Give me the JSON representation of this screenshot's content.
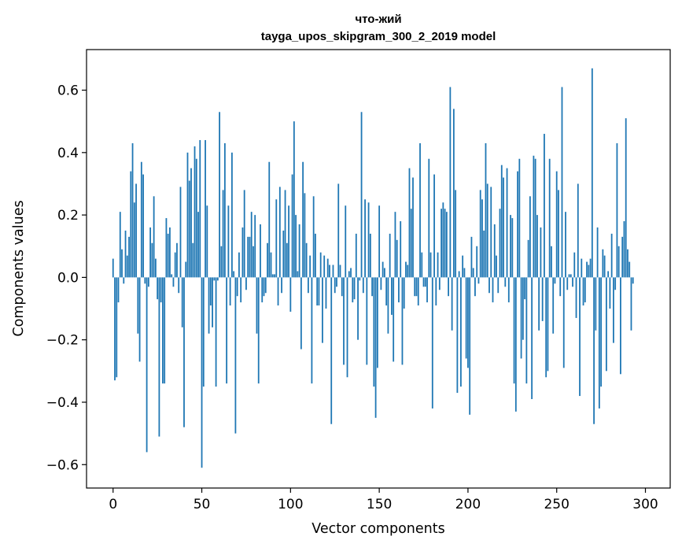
{
  "chart_data": {
    "type": "bar",
    "title_line1": "что-жий",
    "title_line2": "tayga_upos_skipgram_300_2_2019 model",
    "xlabel": "Vector components",
    "ylabel": "Components values",
    "xlim": [
      -14.96,
      313.96
    ],
    "ylim": [
      -0.675,
      0.73
    ],
    "xticks": [
      0,
      50,
      100,
      150,
      200,
      250,
      300
    ],
    "xtick_labels": [
      "0",
      "50",
      "100",
      "150",
      "200",
      "250",
      "300"
    ],
    "yticks": [
      -0.6,
      -0.4,
      -0.2,
      0.0,
      0.2,
      0.4,
      0.6
    ],
    "ytick_labels": [
      "−0.6",
      "−0.4",
      "−0.2",
      "0.0",
      "0.2",
      "0.4",
      "0.6"
    ],
    "bar_color": "#1f77b4",
    "grid": false,
    "values": [
      0.06,
      -0.33,
      -0.32,
      -0.08,
      0.21,
      0.09,
      -0.02,
      0.15,
      0.07,
      0.13,
      0.34,
      0.43,
      0.24,
      0.3,
      -0.18,
      -0.27,
      0.37,
      0.33,
      -0.02,
      -0.56,
      -0.03,
      0.16,
      0.11,
      0.26,
      0.06,
      -0.07,
      -0.51,
      -0.08,
      -0.34,
      -0.34,
      0.19,
      0.14,
      0.16,
      0.01,
      -0.03,
      0.08,
      0.11,
      -0.05,
      0.29,
      -0.16,
      -0.48,
      0.05,
      0.4,
      0.31,
      0.35,
      0.11,
      0.42,
      0.38,
      0.21,
      0.44,
      -0.61,
      -0.35,
      0.44,
      0.23,
      -0.18,
      -0.09,
      -0.16,
      -0.01,
      -0.35,
      -0.01,
      0.53,
      0.1,
      0.28,
      0.43,
      -0.34,
      0.23,
      -0.09,
      0.4,
      0.02,
      -0.5,
      -0.06,
      0.08,
      -0.08,
      0.16,
      0.28,
      -0.04,
      0.13,
      0.13,
      0.21,
      0.1,
      0.2,
      -0.18,
      -0.34,
      0.17,
      -0.08,
      -0.06,
      -0.05,
      0.11,
      0.37,
      0.08,
      0.01,
      0.01,
      0.25,
      -0.09,
      0.29,
      -0.05,
      0.15,
      0.28,
      0.11,
      0.23,
      -0.11,
      0.33,
      0.5,
      0.2,
      0.02,
      0.17,
      -0.23,
      0.37,
      0.27,
      0.11,
      -0.05,
      0.07,
      -0.34,
      0.26,
      0.14,
      -0.09,
      -0.09,
      0.08,
      -0.21,
      0.07,
      -0.1,
      0.06,
      0.04,
      -0.47,
      0.04,
      -0.05,
      -0.03,
      0.3,
      0.04,
      -0.06,
      -0.28,
      0.23,
      -0.32,
      0.02,
      0.03,
      -0.08,
      -0.07,
      0.14,
      -0.2,
      -0.01,
      0.53,
      -0.05,
      0.25,
      -0.28,
      0.24,
      0.14,
      -0.06,
      -0.35,
      -0.45,
      -0.29,
      0.23,
      -0.04,
      0.05,
      0.03,
      -0.09,
      -0.18,
      0.14,
      -0.12,
      -0.27,
      0.21,
      0.12,
      -0.08,
      0.18,
      -0.28,
      -0.1,
      0.05,
      0.04,
      0.35,
      0.22,
      0.32,
      -0.06,
      -0.06,
      -0.09,
      0.43,
      0.08,
      -0.03,
      -0.03,
      -0.08,
      0.38,
      0.08,
      -0.42,
      0.33,
      -0.09,
      0.08,
      -0.04,
      0.22,
      0.24,
      0.22,
      0.21,
      -0.06,
      0.61,
      -0.17,
      0.54,
      0.28,
      -0.37,
      0.02,
      -0.35,
      0.07,
      0.03,
      -0.26,
      -0.29,
      -0.44,
      0.13,
      0.03,
      -0.06,
      0.1,
      -0.02,
      0.28,
      0.25,
      0.15,
      0.43,
      0.3,
      -0.05,
      0.29,
      -0.08,
      0.17,
      0.07,
      -0.05,
      0.22,
      0.36,
      0.32,
      -0.03,
      0.35,
      -0.08,
      0.2,
      0.19,
      -0.34,
      -0.43,
      0.34,
      0.38,
      -0.26,
      -0.2,
      -0.07,
      -0.34,
      0.12,
      0.26,
      -0.39,
      0.39,
      0.38,
      0.2,
      -0.17,
      0.16,
      -0.14,
      0.46,
      -0.32,
      -0.3,
      0.38,
      0.1,
      -0.18,
      -0.02,
      0.34,
      0.28,
      -0.06,
      0.61,
      -0.29,
      0.21,
      -0.04,
      0.01,
      0.01,
      -0.03,
      0.08,
      -0.13,
      0.3,
      -0.38,
      0.06,
      -0.09,
      -0.08,
      0.05,
      0.04,
      0.06,
      0.67,
      -0.47,
      -0.17,
      0.16,
      -0.42,
      -0.35,
      0.09,
      0.07,
      -0.3,
      0.02,
      -0.1,
      0.14,
      -0.21,
      -0.04,
      0.43,
      0.1,
      -0.31,
      0.13,
      0.18,
      0.51,
      0.09,
      0.05,
      -0.17,
      -0.02
    ]
  }
}
